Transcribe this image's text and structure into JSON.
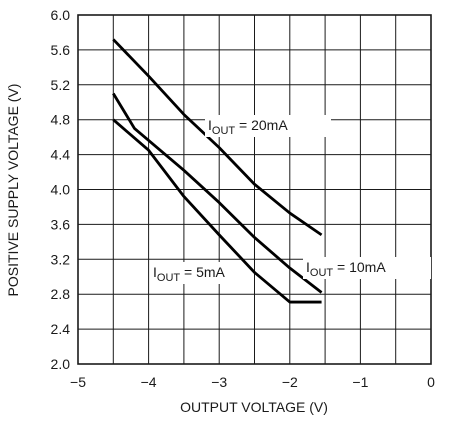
{
  "chart_data": {
    "type": "line",
    "title": "",
    "xlabel": "OUTPUT VOLTAGE (V)",
    "ylabel": "POSITIVE SUPPLY VOLTAGE (V)",
    "xlim": [
      -5,
      0
    ],
    "ylim": [
      2.0,
      6.0
    ],
    "grid": true,
    "x_ticks": [
      "−5",
      "−4",
      "−3",
      "−2",
      "−1",
      "0"
    ],
    "y_ticks": [
      "2.0",
      "2.4",
      "2.8",
      "3.2",
      "3.6",
      "4.0",
      "4.4",
      "4.8",
      "5.2",
      "5.6",
      "6.0"
    ],
    "series": [
      {
        "label_main": "I",
        "label_sub": "OUT",
        "label_rest": " = 20mA",
        "x": [
          -4.5,
          -4.0,
          -3.5,
          -3.0,
          -2.5,
          -2.0,
          -1.55
        ],
        "y": [
          5.72,
          5.3,
          4.86,
          4.48,
          4.06,
          3.73,
          3.48
        ]
      },
      {
        "label_main": "I",
        "label_sub": "OUT",
        "label_rest": " = 10mA",
        "x": [
          -4.5,
          -4.2,
          -3.5,
          -3.0,
          -2.5,
          -2.0,
          -1.55
        ],
        "y": [
          5.1,
          4.7,
          4.22,
          3.85,
          3.45,
          3.1,
          2.82
        ]
      },
      {
        "label_main": "I",
        "label_sub": "OUT",
        "label_rest": " = 5mA",
        "x": [
          -4.5,
          -4.0,
          -3.5,
          -3.0,
          -2.5,
          -2.0,
          -1.55
        ],
        "y": [
          4.8,
          4.45,
          3.92,
          3.48,
          3.05,
          2.71,
          2.71
        ]
      }
    ]
  }
}
